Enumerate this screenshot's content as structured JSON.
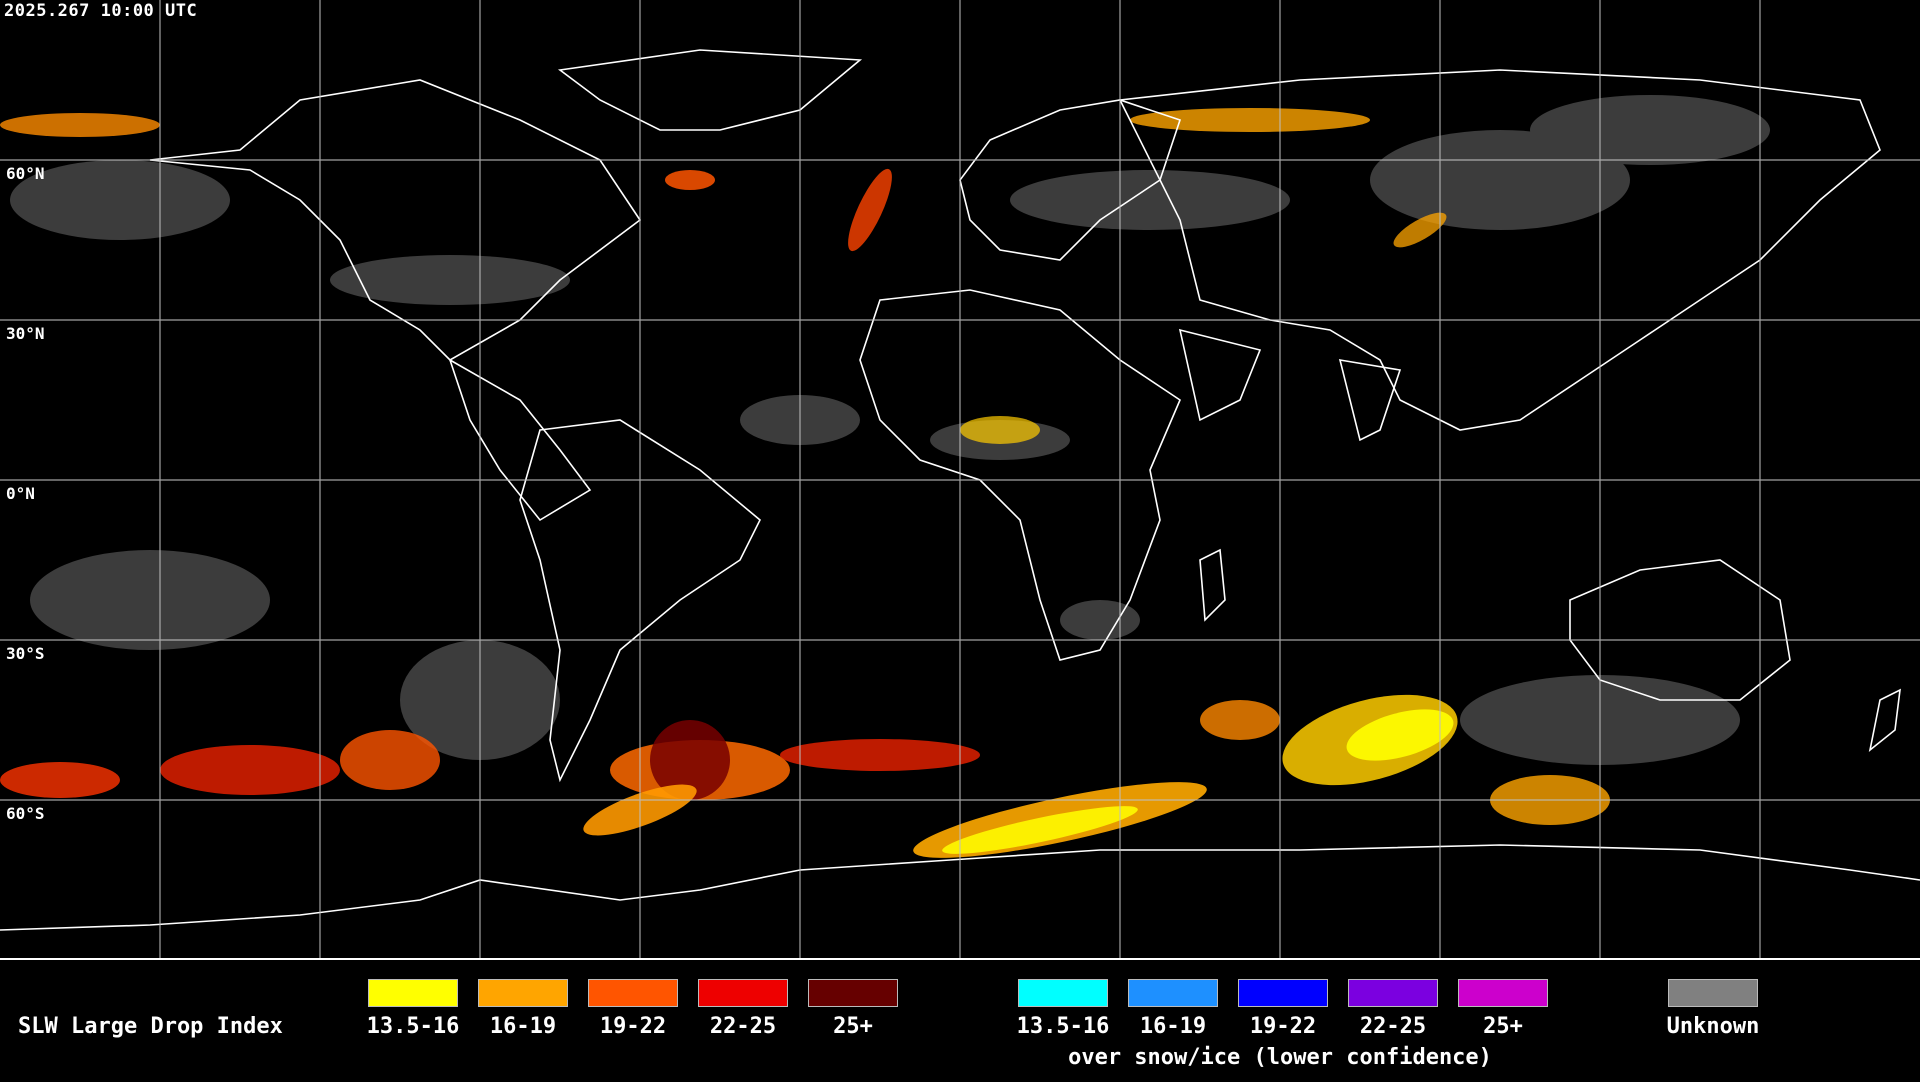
{
  "timestamp": "2025.267 10:00 UTC",
  "lat_labels": [
    "60°N",
    "30°N",
    "0°N",
    "30°S",
    "60°S"
  ],
  "legend": {
    "title": "SLW Large Drop Index",
    "bins": [
      {
        "label": "13.5-16",
        "color": "#ffff00"
      },
      {
        "label": "16-19",
        "color": "#ffa500"
      },
      {
        "label": "19-22",
        "color": "#ff5500"
      },
      {
        "label": "22-25",
        "color": "#ee0000"
      },
      {
        "label": "25+",
        "color": "#660000"
      }
    ],
    "snow_bins": [
      {
        "label": "13.5-16",
        "color": "#00ffff"
      },
      {
        "label": "16-19",
        "color": "#1e90ff"
      },
      {
        "label": "19-22",
        "color": "#0000ff"
      },
      {
        "label": "22-25",
        "color": "#7b00e0"
      },
      {
        "label": "25+",
        "color": "#cc00cc"
      }
    ],
    "snow_note": "over snow/ice (lower confidence)",
    "unknown": {
      "label": "Unknown",
      "color": "#808080"
    }
  }
}
